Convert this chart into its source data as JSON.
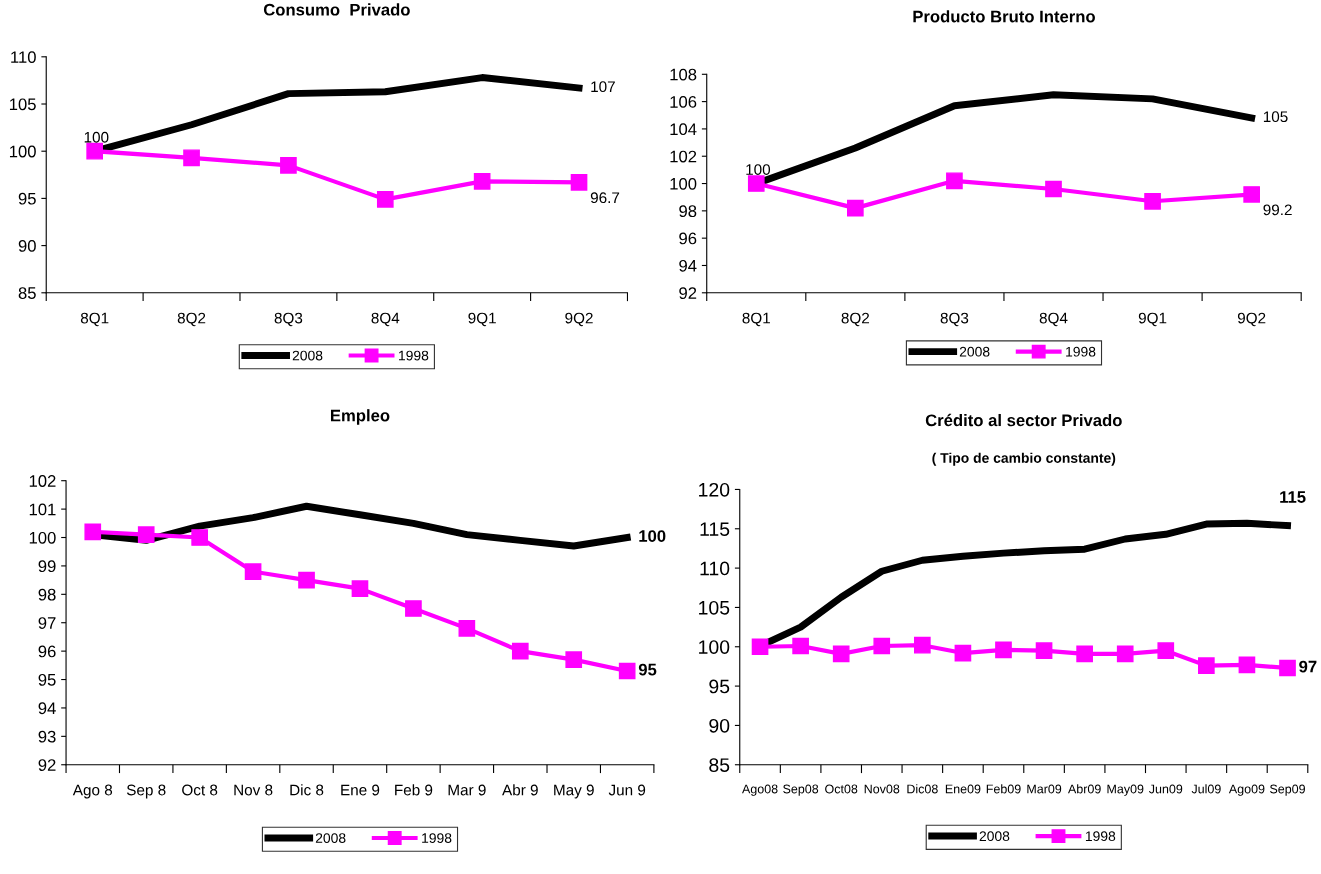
{
  "chart_data": [
    {
      "type": "line",
      "title": "Consumo  Privado",
      "categories": [
        "8Q1",
        "8Q2",
        "8Q3",
        "8Q4",
        "9Q1",
        "9Q2"
      ],
      "ylim": [
        85,
        110
      ],
      "yticks": [
        85,
        90,
        95,
        100,
        105,
        110
      ],
      "grid": false,
      "legend": "bottom",
      "series": [
        {
          "name": "2008",
          "color": "#000000",
          "marker": "none",
          "values": [
            100,
            102.8,
            106.1,
            106.3,
            107.8,
            106.7
          ],
          "value_labels": [
            "100",
            null,
            null,
            null,
            null,
            "107"
          ]
        },
        {
          "name": "1998",
          "color": "#ff00ff",
          "marker": "square",
          "values": [
            100,
            99.3,
            98.5,
            94.9,
            96.8,
            96.7
          ],
          "value_labels": [
            null,
            null,
            null,
            null,
            null,
            "96.7"
          ]
        }
      ]
    },
    {
      "type": "line",
      "title": "Producto Bruto Interno",
      "categories": [
        "8Q1",
        "8Q2",
        "8Q3",
        "8Q4",
        "9Q1",
        "9Q2"
      ],
      "ylim": [
        92,
        108
      ],
      "yticks": [
        92,
        94,
        96,
        98,
        100,
        102,
        104,
        106,
        108
      ],
      "grid": false,
      "legend": "bottom",
      "series": [
        {
          "name": "2008",
          "color": "#000000",
          "marker": "none",
          "values": [
            100,
            102.6,
            105.7,
            106.5,
            106.2,
            104.8
          ],
          "value_labels": [
            "100",
            null,
            null,
            null,
            null,
            "105"
          ]
        },
        {
          "name": "1998",
          "color": "#ff00ff",
          "marker": "square",
          "values": [
            100,
            98.2,
            100.2,
            99.6,
            98.7,
            99.2
          ],
          "value_labels": [
            null,
            null,
            null,
            null,
            null,
            "99.2"
          ]
        }
      ]
    },
    {
      "type": "line",
      "title": "Empleo",
      "categories": [
        "Ago 8",
        "Sep 8",
        "Oct 8",
        "Nov 8",
        "Dic 8",
        "Ene 9",
        "Feb 9",
        "Mar 9",
        "Abr 9",
        "May 9",
        "Jun 9"
      ],
      "ylim": [
        92,
        102
      ],
      "yticks": [
        92,
        93,
        94,
        95,
        96,
        97,
        98,
        99,
        100,
        101,
        102
      ],
      "grid": false,
      "legend": "bottom",
      "series": [
        {
          "name": "2008",
          "color": "#000000",
          "marker": "none",
          "values": [
            100.1,
            99.9,
            100.4,
            100.7,
            101.1,
            100.8,
            100.5,
            100.1,
            99.9,
            99.7,
            100.0
          ],
          "value_labels": [
            null,
            null,
            null,
            null,
            null,
            null,
            null,
            null,
            null,
            null,
            "100"
          ]
        },
        {
          "name": "1998",
          "color": "#ff00ff",
          "marker": "square",
          "values": [
            100.2,
            100.1,
            100.0,
            98.8,
            98.5,
            98.2,
            97.5,
            96.8,
            96.0,
            95.7,
            95.3
          ],
          "value_labels": [
            null,
            null,
            null,
            null,
            null,
            null,
            null,
            null,
            null,
            null,
            "95"
          ]
        }
      ]
    },
    {
      "type": "line",
      "title": "Crédito al sector Privado",
      "subtitle": "( Tipo de cambio constante)",
      "categories": [
        "Ago08",
        "Sep08",
        "Oct08",
        "Nov08",
        "Dic08",
        "Ene09",
        "Feb09",
        "Mar09",
        "Abr09",
        "May09",
        "Jun09",
        "Jul09",
        "Ago09",
        "Sep09"
      ],
      "ylim": [
        85,
        120
      ],
      "yticks": [
        85,
        90,
        95,
        100,
        105,
        110,
        115,
        120
      ],
      "grid": false,
      "legend": "bottom",
      "series": [
        {
          "name": "2008",
          "color": "#000000",
          "marker": "none",
          "values": [
            100.1,
            102.5,
            106.3,
            109.6,
            111.0,
            111.5,
            111.9,
            112.2,
            112.4,
            113.7,
            114.3,
            115.6,
            115.7,
            115.4
          ],
          "value_labels": [
            null,
            null,
            null,
            null,
            null,
            null,
            null,
            null,
            null,
            null,
            null,
            null,
            null,
            "115"
          ]
        },
        {
          "name": "1998",
          "color": "#ff00ff",
          "marker": "square",
          "values": [
            100.0,
            100.1,
            99.1,
            100.1,
            100.2,
            99.2,
            99.6,
            99.5,
            99.1,
            99.1,
            99.5,
            97.6,
            97.7,
            97.3
          ],
          "value_labels": [
            null,
            null,
            null,
            null,
            null,
            null,
            null,
            null,
            null,
            null,
            null,
            null,
            null,
            "97"
          ]
        }
      ]
    }
  ]
}
